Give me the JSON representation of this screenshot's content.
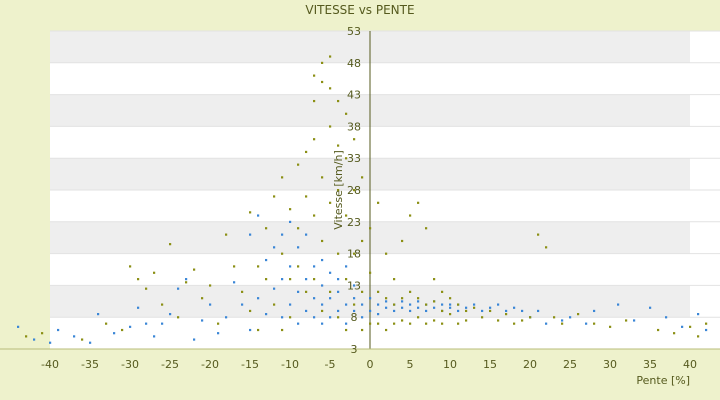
{
  "chart_data": {
    "type": "scatter",
    "title": "VITESSE vs PENTE",
    "xlabel": "Pente [%]",
    "ylabel": "Vitesse [km/h]",
    "xlim": [
      -40,
      40
    ],
    "ylim": [
      3,
      53
    ],
    "x_ticks": [
      -40,
      -35,
      -30,
      -25,
      -20,
      -15,
      -10,
      -5,
      0,
      5,
      10,
      15,
      20,
      25,
      30,
      35,
      40
    ],
    "y_ticks": [
      3,
      8,
      13,
      18,
      23,
      28,
      33,
      38,
      43,
      48,
      53
    ],
    "grid": true,
    "legend": "none",
    "colors": {
      "background": "#eef2cc",
      "plot_band_light": "#ffffff",
      "plot_band_dark": "#eeeeee",
      "axis": "#555a1e",
      "series_blue": "#3a86d6",
      "series_olive": "#8b8f14"
    },
    "series": [
      {
        "color": "#3a86d6",
        "points": [
          [
            -44,
            6.5
          ],
          [
            -42,
            4.5
          ],
          [
            -40,
            4
          ],
          [
            -39,
            6
          ],
          [
            -37,
            5
          ],
          [
            -35,
            4
          ],
          [
            -34,
            8.5
          ],
          [
            -32,
            5.5
          ],
          [
            -30,
            6.5
          ],
          [
            -29,
            9.5
          ],
          [
            -28,
            7
          ],
          [
            -27,
            5
          ],
          [
            -26,
            7
          ],
          [
            -25,
            8.5
          ],
          [
            -24,
            12.5
          ],
          [
            -23,
            14
          ],
          [
            -22,
            4.5
          ],
          [
            -21,
            7.5
          ],
          [
            -20,
            10
          ],
          [
            -19,
            5.5
          ],
          [
            -18,
            8
          ],
          [
            -17,
            13.5
          ],
          [
            -16,
            10
          ],
          [
            -15,
            6
          ],
          [
            -15,
            21
          ],
          [
            -14,
            11
          ],
          [
            -14,
            24
          ],
          [
            -13,
            17
          ],
          [
            -13,
            8.5
          ],
          [
            -12,
            12.5
          ],
          [
            -12,
            19
          ],
          [
            -11,
            14
          ],
          [
            -11,
            21
          ],
          [
            -11,
            8
          ],
          [
            -10,
            16
          ],
          [
            -10,
            10
          ],
          [
            -10,
            23
          ],
          [
            -9,
            12
          ],
          [
            -9,
            19
          ],
          [
            -9,
            7
          ],
          [
            -8,
            14
          ],
          [
            -8,
            9
          ],
          [
            -8,
            21
          ],
          [
            -7,
            11
          ],
          [
            -7,
            16
          ],
          [
            -7,
            8
          ],
          [
            -6,
            13
          ],
          [
            -6,
            17
          ],
          [
            -6,
            10
          ],
          [
            -6,
            7
          ],
          [
            -5,
            15
          ],
          [
            -5,
            11
          ],
          [
            -5,
            8
          ],
          [
            -4,
            14
          ],
          [
            -4,
            9
          ],
          [
            -4,
            12
          ],
          [
            -3,
            10
          ],
          [
            -3,
            16
          ],
          [
            -3,
            7
          ],
          [
            -2,
            13
          ],
          [
            -2,
            9
          ],
          [
            -2,
            11
          ],
          [
            -1,
            10
          ],
          [
            -1,
            8
          ],
          [
            0,
            9
          ],
          [
            0,
            11
          ],
          [
            1,
            10
          ],
          [
            1,
            8.5
          ],
          [
            2,
            9.5
          ],
          [
            2,
            10.5
          ],
          [
            3,
            9
          ],
          [
            3,
            10
          ],
          [
            4,
            9.5
          ],
          [
            4,
            10.5
          ],
          [
            5,
            9
          ],
          [
            5,
            10
          ],
          [
            6,
            9.5
          ],
          [
            6,
            10.5
          ],
          [
            7,
            9
          ],
          [
            7,
            10
          ],
          [
            8,
            9.5
          ],
          [
            8,
            10.5
          ],
          [
            9,
            9
          ],
          [
            9,
            10
          ],
          [
            10,
            9.5
          ],
          [
            10,
            10
          ],
          [
            11,
            9
          ],
          [
            11,
            10
          ],
          [
            12,
            9.5
          ],
          [
            13,
            10
          ],
          [
            14,
            9
          ],
          [
            15,
            9.5
          ],
          [
            16,
            10
          ],
          [
            17,
            9
          ],
          [
            18,
            9.5
          ],
          [
            19,
            9
          ],
          [
            20,
            8
          ],
          [
            21,
            9
          ],
          [
            22,
            7
          ],
          [
            24,
            7.5
          ],
          [
            25,
            8
          ],
          [
            27,
            7
          ],
          [
            28,
            9
          ],
          [
            31,
            10
          ],
          [
            33,
            7.5
          ],
          [
            35,
            9.5
          ],
          [
            37,
            8
          ],
          [
            39,
            6.5
          ],
          [
            41,
            8.5
          ],
          [
            42,
            6
          ]
        ]
      },
      {
        "color": "#8b8f14",
        "points": [
          [
            -43,
            5
          ],
          [
            -41,
            5.5
          ],
          [
            -36,
            4.5
          ],
          [
            -33,
            7
          ],
          [
            -31,
            6
          ],
          [
            -30,
            16
          ],
          [
            -29,
            14
          ],
          [
            -28,
            12.5
          ],
          [
            -27,
            15
          ],
          [
            -26,
            10
          ],
          [
            -25,
            19.5
          ],
          [
            -24,
            8
          ],
          [
            -23,
            13.5
          ],
          [
            -22,
            15.5
          ],
          [
            -21,
            11
          ],
          [
            -20,
            13
          ],
          [
            -19,
            7
          ],
          [
            -18,
            21
          ],
          [
            -17,
            16
          ],
          [
            -16,
            12
          ],
          [
            -15,
            24.5
          ],
          [
            -15,
            9
          ],
          [
            -14,
            16
          ],
          [
            -14,
            6
          ],
          [
            -13,
            22
          ],
          [
            -13,
            14
          ],
          [
            -12,
            27
          ],
          [
            -12,
            10
          ],
          [
            -11,
            30
          ],
          [
            -11,
            18
          ],
          [
            -11,
            6
          ],
          [
            -10,
            25
          ],
          [
            -10,
            14
          ],
          [
            -10,
            8
          ],
          [
            -9,
            32
          ],
          [
            -9,
            22
          ],
          [
            -9,
            16
          ],
          [
            -8,
            34
          ],
          [
            -8,
            27
          ],
          [
            -8,
            12
          ],
          [
            -7,
            36
          ],
          [
            -7,
            42
          ],
          [
            -7,
            46
          ],
          [
            -7,
            24
          ],
          [
            -7,
            14
          ],
          [
            -6,
            45
          ],
          [
            -6,
            48
          ],
          [
            -6,
            30
          ],
          [
            -6,
            20
          ],
          [
            -6,
            9
          ],
          [
            -5,
            49
          ],
          [
            -5,
            44
          ],
          [
            -5,
            38
          ],
          [
            -5,
            26
          ],
          [
            -5,
            12
          ],
          [
            -4,
            42
          ],
          [
            -4,
            35
          ],
          [
            -4,
            28
          ],
          [
            -4,
            18
          ],
          [
            -4,
            8
          ],
          [
            -3,
            40
          ],
          [
            -3,
            33
          ],
          [
            -3,
            24
          ],
          [
            -3,
            14
          ],
          [
            -3,
            6
          ],
          [
            -2,
            36
          ],
          [
            -2,
            28
          ],
          [
            -2,
            18
          ],
          [
            -2,
            10
          ],
          [
            -1,
            30
          ],
          [
            -1,
            20
          ],
          [
            -1,
            12
          ],
          [
            -1,
            6
          ],
          [
            0,
            15
          ],
          [
            0,
            22
          ],
          [
            0,
            7
          ],
          [
            1,
            26
          ],
          [
            1,
            12
          ],
          [
            1,
            7
          ],
          [
            2,
            18
          ],
          [
            2,
            11
          ],
          [
            2,
            6
          ],
          [
            3,
            14
          ],
          [
            3,
            10
          ],
          [
            3,
            7
          ],
          [
            4,
            20
          ],
          [
            4,
            11
          ],
          [
            4,
            7.5
          ],
          [
            5,
            24
          ],
          [
            5,
            12
          ],
          [
            5,
            7
          ],
          [
            6,
            26
          ],
          [
            6,
            11
          ],
          [
            6,
            8
          ],
          [
            7,
            22
          ],
          [
            7,
            10
          ],
          [
            7,
            7
          ],
          [
            8,
            14
          ],
          [
            8,
            10.5
          ],
          [
            8,
            7.5
          ],
          [
            9,
            12
          ],
          [
            9,
            9
          ],
          [
            9,
            7
          ],
          [
            10,
            11
          ],
          [
            10,
            8.5
          ],
          [
            11,
            10
          ],
          [
            11,
            7
          ],
          [
            12,
            9
          ],
          [
            12,
            7.5
          ],
          [
            13,
            9.5
          ],
          [
            14,
            8
          ],
          [
            15,
            9
          ],
          [
            16,
            7.5
          ],
          [
            17,
            8.5
          ],
          [
            18,
            7
          ],
          [
            19,
            7.5
          ],
          [
            20,
            8
          ],
          [
            21,
            21
          ],
          [
            22,
            19
          ],
          [
            23,
            8
          ],
          [
            24,
            7
          ],
          [
            26,
            8.5
          ],
          [
            28,
            7
          ],
          [
            30,
            6.5
          ],
          [
            32,
            7.5
          ],
          [
            36,
            6
          ],
          [
            38,
            5.5
          ],
          [
            40,
            6.5
          ],
          [
            41,
            5
          ],
          [
            42,
            7
          ]
        ]
      }
    ]
  }
}
